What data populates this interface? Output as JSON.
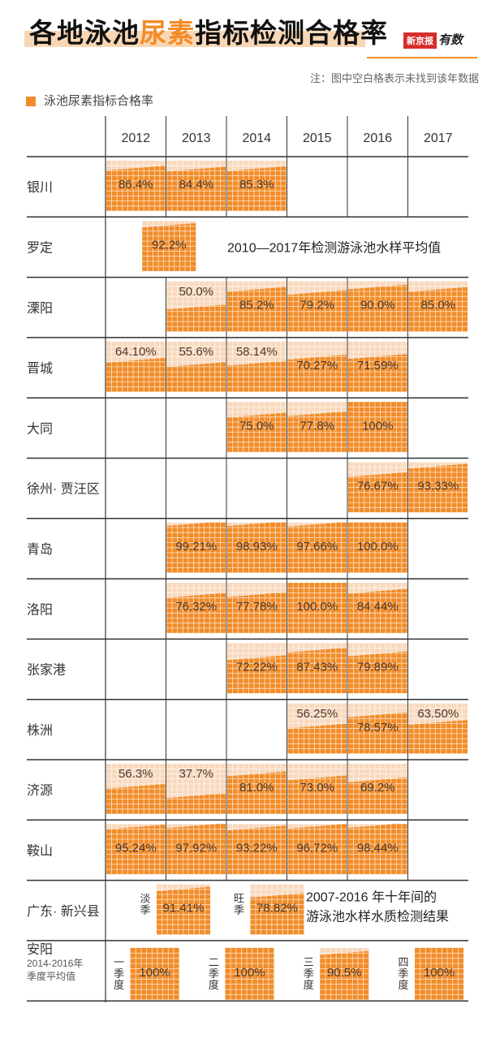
{
  "header": {
    "title_part1": "各地泳池",
    "title_highlight": "尿素",
    "title_part2": "指标检测合格率",
    "logo_mark": "新京报",
    "logo_text": "有数",
    "note": "注：图中空白格表示未找到该年数据",
    "legend_label": "泳池尿素指标合格率"
  },
  "colors": {
    "orange": "#f28c28",
    "light_orange": "#f9d9bd",
    "line": "#333333"
  },
  "chart_data": {
    "type": "table",
    "columns": [
      "2012",
      "2013",
      "2014",
      "2015",
      "2016",
      "2017"
    ],
    "rows": [
      {
        "name": "银川",
        "cells": [
          {
            "col": 0,
            "value": 86.4,
            "label": "86.4%"
          },
          {
            "col": 1,
            "value": 84.4,
            "label": "84.4%"
          },
          {
            "col": 2,
            "value": 85.3,
            "label": "85.3%"
          }
        ]
      },
      {
        "name": "罗定",
        "note": "2010—2017年检测游泳池水样平均值",
        "cells": [
          {
            "col": 0.5,
            "value": 92.2,
            "label": "92.2%"
          }
        ]
      },
      {
        "name": "溧阳",
        "cells": [
          {
            "col": 1,
            "value": 50.0,
            "label": "50.0%"
          },
          {
            "col": 2,
            "value": 85.2,
            "label": "85.2%"
          },
          {
            "col": 3,
            "value": 79.2,
            "label": "79.2%"
          },
          {
            "col": 4,
            "value": 90.0,
            "label": "90.0%"
          },
          {
            "col": 5,
            "value": 85.0,
            "label": "85.0%"
          }
        ]
      },
      {
        "name": "晋城",
        "cells": [
          {
            "col": 0,
            "value": 64.1,
            "label": "64.10%"
          },
          {
            "col": 1,
            "value": 55.6,
            "label": "55.6%"
          },
          {
            "col": 2,
            "value": 58.14,
            "label": "58.14%"
          },
          {
            "col": 3,
            "value": 70.27,
            "label": "70.27%"
          },
          {
            "col": 4,
            "value": 71.59,
            "label": "71.59%"
          }
        ]
      },
      {
        "name": "大同",
        "cells": [
          {
            "col": 2,
            "value": 75.0,
            "label": "75.0%"
          },
          {
            "col": 3,
            "value": 77.8,
            "label": "77.8%"
          },
          {
            "col": 4,
            "value": 100,
            "label": "100%"
          }
        ]
      },
      {
        "name": "徐州· 贾汪区",
        "cells": [
          {
            "col": 4,
            "value": 76.67,
            "label": "76.67%"
          },
          {
            "col": 5,
            "value": 93.33,
            "label": "93.33%"
          }
        ]
      },
      {
        "name": "青岛",
        "cells": [
          {
            "col": 1,
            "value": 99.21,
            "label": "99.21%"
          },
          {
            "col": 2,
            "value": 98.93,
            "label": "98.93%"
          },
          {
            "col": 3,
            "value": 97.66,
            "label": "97.66%"
          },
          {
            "col": 4,
            "value": 100.0,
            "label": "100.0%"
          }
        ]
      },
      {
        "name": "洛阳",
        "cells": [
          {
            "col": 1,
            "value": 76.32,
            "label": "76.32%"
          },
          {
            "col": 2,
            "value": 77.78,
            "label": "77.78%"
          },
          {
            "col": 3,
            "value": 100.0,
            "label": "100.0%"
          },
          {
            "col": 4,
            "value": 84.44,
            "label": "84.44%"
          }
        ]
      },
      {
        "name": "张家港",
        "cells": [
          {
            "col": 2,
            "value": 72.22,
            "label": "72.22%"
          },
          {
            "col": 3,
            "value": 87.43,
            "label": "87.43%"
          },
          {
            "col": 4,
            "value": 79.89,
            "label": "79.89%"
          }
        ]
      },
      {
        "name": "株洲",
        "cells": [
          {
            "col": 3,
            "value": 56.25,
            "label": "56.25%"
          },
          {
            "col": 4,
            "value": 78.57,
            "label": "78.57%"
          },
          {
            "col": 5,
            "value": 63.5,
            "label": "63.50%"
          }
        ]
      },
      {
        "name": "济源",
        "cells": [
          {
            "col": 0,
            "value": 56.3,
            "label": "56.3%"
          },
          {
            "col": 1,
            "value": 37.7,
            "label": "37.7%"
          },
          {
            "col": 2,
            "value": 81.0,
            "label": "81.0%"
          },
          {
            "col": 3,
            "value": 73.0,
            "label": "73.0%"
          },
          {
            "col": 4,
            "value": 69.2,
            "label": "69.2%"
          }
        ]
      },
      {
        "name": "鞍山",
        "cells": [
          {
            "col": 0,
            "value": 95.24,
            "label": "95.24%"
          },
          {
            "col": 1,
            "value": 97.92,
            "label": "97.92%"
          },
          {
            "col": 2,
            "value": 93.22,
            "label": "93.22%"
          },
          {
            "col": 3,
            "value": 96.72,
            "label": "96.72%"
          },
          {
            "col": 4,
            "value": 98.44,
            "label": "98.44%"
          }
        ]
      },
      {
        "name": "广东· 新兴县",
        "note_lines": [
          "2007-2016 年十年间的",
          "游泳池水样水质检测结果"
        ],
        "cells": [
          {
            "col": 0.55,
            "value": 91.41,
            "label": "91.41%",
            "tag": "淡季"
          },
          {
            "col": 2.1,
            "value": 78.82,
            "label": "78.82%",
            "tag": "旺季"
          }
        ]
      },
      {
        "name": "安阳",
        "sub_lines": [
          "2014-2016年",
          "季度平均值"
        ],
        "cells": [
          {
            "col": 0.2,
            "value": 100,
            "label": "100%",
            "tag": "一季度"
          },
          {
            "col": 1.8,
            "value": 100,
            "label": "100%",
            "tag": "二季度"
          },
          {
            "col": 3.4,
            "value": 90.5,
            "label": "90.5%",
            "tag": "三季度"
          },
          {
            "col": 5.0,
            "value": 100,
            "label": "100%",
            "tag": "四季度"
          }
        ]
      }
    ]
  }
}
